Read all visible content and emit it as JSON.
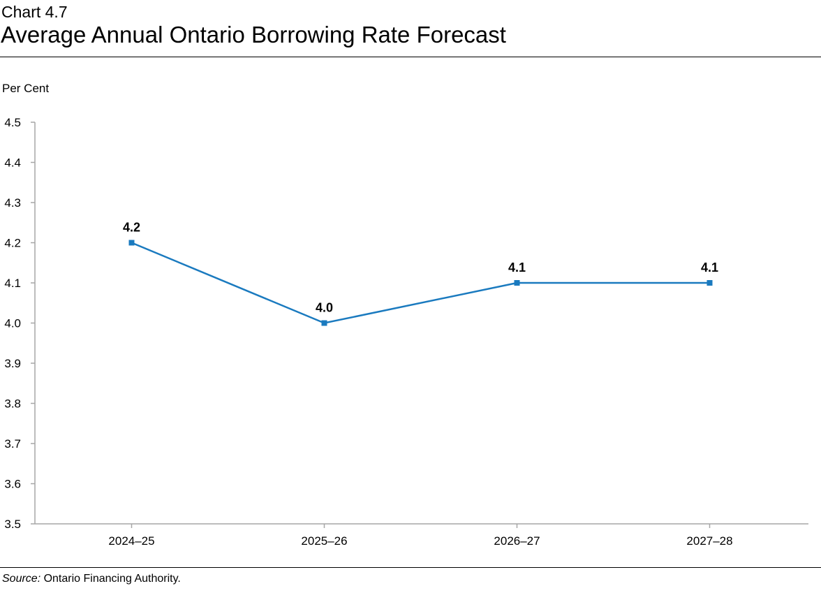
{
  "header": {
    "chart_number": "Chart 4.7",
    "title": "Average Annual Ontario Borrowing Rate Forecast"
  },
  "source": {
    "label": "Source:",
    "text": " Ontario Financing Authority."
  },
  "chart_data": {
    "type": "line",
    "title": "Average Annual Ontario Borrowing Rate Forecast",
    "ylabel": "Per Cent",
    "xlabel": "",
    "categories": [
      "2024–25",
      "2025–26",
      "2026–27",
      "2027–28"
    ],
    "values": [
      4.2,
      4.0,
      4.1,
      4.1
    ],
    "data_labels": [
      "4.2",
      "4.0",
      "4.1",
      "4.1"
    ],
    "ylim": [
      3.5,
      4.5
    ],
    "yticks": [
      "3.5",
      "3.6",
      "3.7",
      "3.8",
      "3.9",
      "4.0",
      "4.1",
      "4.2",
      "4.3",
      "4.4",
      "4.5"
    ],
    "grid": false,
    "legend": "none",
    "line_color": "#1a7abf",
    "axis_color": "#a6a6a6"
  }
}
